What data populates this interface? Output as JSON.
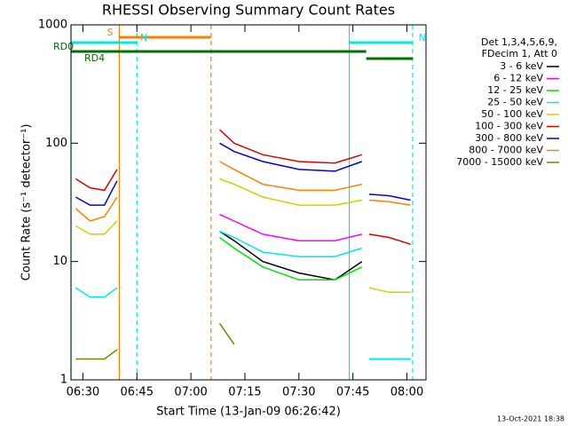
{
  "chart_data": {
    "type": "line",
    "title": "RHESSI Observing Summary Count Rates",
    "xlabel": "Start Time (13-Jan-09 06:26:42)",
    "ylabel": "Count Rate (s⁻¹ detector⁻¹)",
    "legend_header": [
      "Det 1,3,4,5,6,9,",
      "FDecim 1, Att 0"
    ],
    "footer": "13-Oct-2021 18:38",
    "ylog": true,
    "ylim": [
      1,
      1000
    ],
    "yticks": [
      1,
      10,
      100,
      1000
    ],
    "xlim": [
      386.7,
      485.3
    ],
    "xticks": [
      {
        "value": 390,
        "label": "06:30"
      },
      {
        "value": 405,
        "label": "06:45"
      },
      {
        "value": 420,
        "label": "07:00"
      },
      {
        "value": 435,
        "label": "07:15"
      },
      {
        "value": 450,
        "label": "07:30"
      },
      {
        "value": 465,
        "label": "07:45"
      },
      {
        "value": 480,
        "label": "08:00"
      }
    ],
    "x": [
      388,
      392,
      396,
      399.5,
      410,
      428,
      432,
      440,
      450,
      460,
      467.5,
      468.5,
      469.5,
      475,
      481
    ],
    "series": [
      {
        "name": "3 - 6 keV",
        "color": "#000000",
        "values": [
          null,
          null,
          null,
          null,
          null,
          18,
          15,
          10,
          8,
          7,
          10,
          null,
          null,
          null,
          null
        ]
      },
      {
        "name": "6 - 12 keV",
        "color": "#ff00ff",
        "values": [
          null,
          null,
          null,
          null,
          null,
          25,
          22,
          17,
          15,
          15,
          17,
          null,
          null,
          null,
          null
        ]
      },
      {
        "name": "12 - 25 keV",
        "color": "#00e000",
        "values": [
          null,
          null,
          null,
          null,
          null,
          16,
          13,
          9,
          7,
          7,
          9,
          null,
          1.5,
          1.5,
          1.5
        ]
      },
      {
        "name": "25 - 50 keV",
        "color": "#00e8e8",
        "values": [
          6,
          5,
          5,
          6,
          null,
          18,
          16,
          12,
          11,
          11,
          13,
          null,
          1.5,
          1.5,
          1.5
        ]
      },
      {
        "name": "50 - 100 keV",
        "color": "#d0d000",
        "values": [
          20,
          17,
          17,
          22,
          null,
          50,
          45,
          35,
          30,
          30,
          33,
          null,
          6,
          5.5,
          5.5
        ]
      },
      {
        "name": "100 - 300 keV",
        "color": "#e00000",
        "values": [
          50,
          42,
          40,
          60,
          null,
          130,
          100,
          80,
          70,
          68,
          80,
          null,
          17,
          16,
          14
        ]
      },
      {
        "name": "300 - 800 keV",
        "color": "#0000e0",
        "values": [
          35,
          30,
          30,
          48,
          null,
          100,
          85,
          70,
          60,
          58,
          70,
          null,
          37,
          36,
          33
        ]
      },
      {
        "name": "800 - 7000 keV",
        "color": "#ff8000",
        "values": [
          28,
          22,
          24,
          35,
          null,
          70,
          60,
          45,
          40,
          40,
          45,
          null,
          33,
          32,
          30
        ]
      },
      {
        "name": "7000 - 15000 keV",
        "color": "#808000",
        "values": [
          1.5,
          1.5,
          1.5,
          1.8,
          null,
          3,
          2,
          null,
          null,
          null,
          null,
          null,
          null,
          null,
          null
        ]
      }
    ],
    "flags": [
      {
        "label": "S",
        "color": "#ff8000",
        "start": 400.1,
        "end": 425.6,
        "level": 0
      },
      {
        "label": "N",
        "color": "#00e8e8",
        "start": 386.7,
        "end": 405,
        "level": 1
      },
      {
        "label": "N",
        "color": "#00e8e8",
        "start": 464,
        "end": 481.6,
        "level": 1
      },
      {
        "label": "RD0",
        "color": "#007000",
        "start": 386.7,
        "end": 468.7,
        "level": 2
      },
      {
        "label": "RD4",
        "color": "#007000",
        "start": 468.7,
        "end": 481.6,
        "level": 3
      }
    ],
    "markers": [
      {
        "x": 386.7,
        "color": "#00e8e8",
        "dashed": false
      },
      {
        "x": 400.1,
        "color": "#ff8000",
        "dashed": false
      },
      {
        "x": 405,
        "color": "#00e8e8",
        "dashed": true
      },
      {
        "x": 425.6,
        "color": "#ff8000",
        "dashed": true
      },
      {
        "x": 464,
        "color": "#00e8e8",
        "dashed": false
      },
      {
        "x": 481.6,
        "color": "#00e8e8",
        "dashed": true
      }
    ]
  }
}
